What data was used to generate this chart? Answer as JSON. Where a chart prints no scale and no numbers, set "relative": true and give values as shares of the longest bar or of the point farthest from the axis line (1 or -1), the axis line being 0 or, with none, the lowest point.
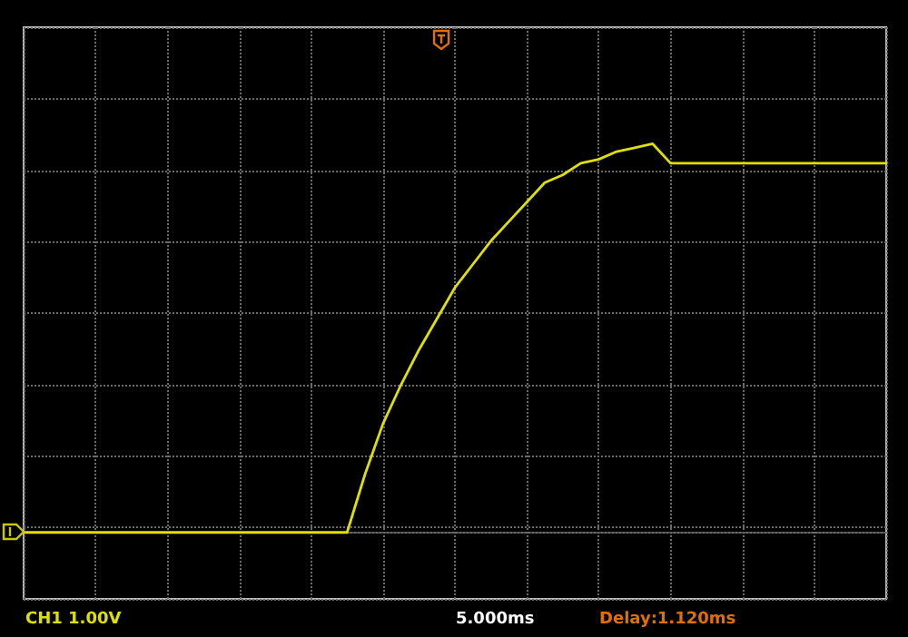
{
  "chart_data": {
    "type": "line",
    "relative": true,
    "grid": true,
    "marker": "none",
    "line_style": "solid",
    "categories": [
      null,
      null,
      null,
      null,
      null,
      null,
      null,
      null,
      null,
      null,
      null,
      null,
      null,
      null,
      null,
      null,
      null,
      null,
      null,
      null,
      null,
      null,
      null,
      null,
      null,
      null,
      null,
      null,
      null,
      null,
      null,
      null,
      null,
      null,
      null,
      null,
      null,
      null,
      null,
      null,
      null,
      null,
      null,
      null,
      null,
      null,
      null,
      null,
      null
    ],
    "series": [
      {
        "color": "#e0e000",
        "values": [
          0,
          0,
          0,
          0,
          0,
          0,
          0,
          0,
          0,
          0,
          0,
          0,
          0,
          0,
          0,
          0,
          0,
          0,
          0,
          0.15,
          0.28,
          0.38,
          0.47,
          0.55,
          0.63,
          0.69,
          0.75,
          0.8,
          0.85,
          0.9,
          0.92,
          0.95,
          0.96,
          0.98,
          0.99,
          1,
          0.95,
          0.95,
          0.95,
          0.95,
          0.95,
          0.95,
          0.95,
          0.95,
          0.95,
          0.95,
          0.95,
          0.95,
          0.95
        ]
      }
    ],
    "annotations": [
      "CH1 1.00V",
      "5.000ms",
      "Delay:1.120ms"
    ]
  }
}
